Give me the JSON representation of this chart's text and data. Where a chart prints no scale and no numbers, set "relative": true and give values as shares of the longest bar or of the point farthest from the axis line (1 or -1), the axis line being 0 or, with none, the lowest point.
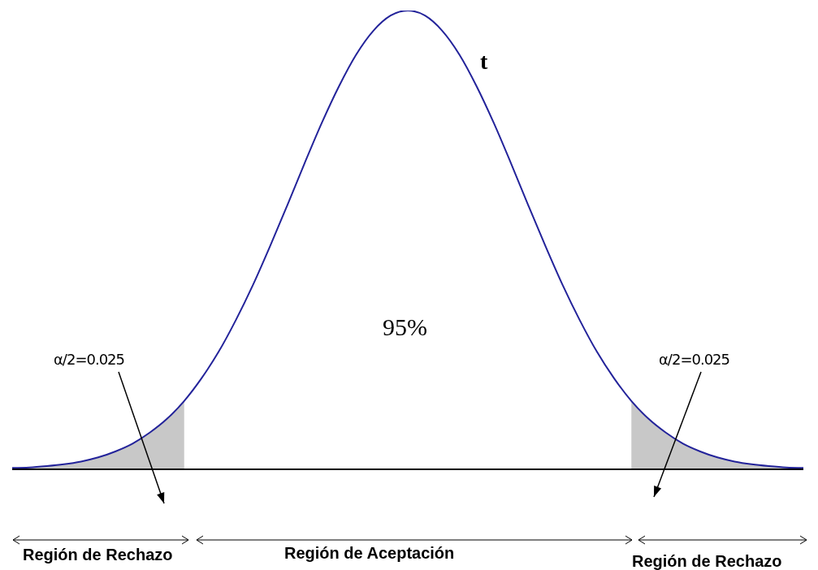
{
  "chart_data": {
    "type": "line",
    "relative": true,
    "grid": false,
    "marker": "none",
    "line_style": "solid",
    "categories": [
      null,
      null,
      null,
      null,
      null,
      null,
      null,
      null,
      null,
      null,
      null,
      null,
      null,
      null,
      null,
      null,
      null,
      null,
      null,
      null,
      null,
      null,
      null,
      null,
      null,
      null,
      null,
      null,
      null,
      null,
      null,
      null,
      null,
      null,
      null,
      null,
      null,
      null,
      null,
      null,
      null,
      null,
      null,
      null,
      null,
      null,
      null
    ],
    "series": [
      {
        "type": "area",
        "color": "#c8c8c8",
        "values": [
          0.003,
          0.004,
          0.007,
          0.011,
          0.017,
          0.026,
          0.039,
          0.056,
          0.08,
          0.11,
          0.149,
          null,
          null,
          null,
          null,
          null,
          null,
          null,
          null,
          null,
          null,
          null,
          null,
          null,
          null,
          null,
          null,
          null,
          null,
          null,
          null,
          null,
          null,
          null,
          null,
          null,
          null,
          null,
          null,
          null,
          null,
          null,
          null,
          null,
          null,
          null,
          null
        ]
      },
      {
        "type": "area",
        "color": "#c8c8c8",
        "values": [
          null,
          null,
          null,
          null,
          null,
          null,
          null,
          null,
          null,
          null,
          null,
          null,
          null,
          null,
          null,
          null,
          null,
          null,
          null,
          null,
          null,
          null,
          null,
          null,
          null,
          null,
          null,
          null,
          null,
          null,
          null,
          null,
          null,
          null,
          null,
          null,
          0.149,
          0.11,
          0.08,
          0.056,
          0.039,
          0.026,
          0.017,
          0.011,
          0.007,
          0.004,
          0.003
        ]
      },
      {
        "color": "#23239a",
        "values": [
          0.003,
          0.004,
          0.007,
          0.011,
          0.017,
          0.026,
          0.039,
          0.056,
          0.08,
          0.11,
          0.149,
          0.198,
          0.256,
          0.325,
          0.402,
          0.487,
          0.576,
          0.667,
          0.755,
          0.835,
          0.904,
          0.956,
          0.989,
          1.0,
          0.989,
          0.956,
          0.904,
          0.835,
          0.755,
          0.667,
          0.576,
          0.487,
          0.402,
          0.325,
          0.256,
          0.198,
          0.149,
          0.11,
          0.08,
          0.056,
          0.039,
          0.026,
          0.017,
          0.011,
          0.007,
          0.004,
          0.003
        ]
      }
    ],
    "annotations": [
      "t",
      "95%",
      "α/2=0.025",
      "α/2=0.025",
      "Región de Rechazo",
      "Región de Aceptación",
      "Región de Rechazo"
    ]
  }
}
